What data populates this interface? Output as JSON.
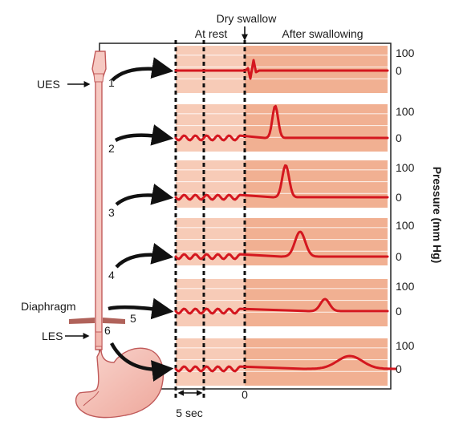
{
  "header": {
    "dry_swallow": "Dry swallow",
    "at_rest": "At rest",
    "after_swallowing": "After swallowing"
  },
  "anatomy": {
    "ues": "UES",
    "diaphragm": "Diaphragm",
    "les": "LES"
  },
  "sites": [
    "1",
    "2",
    "3",
    "4",
    "5",
    "6"
  ],
  "axis": {
    "ylabel": "Pressure (mm Hg)",
    "tick_high": "100",
    "tick_low": "0",
    "swallow_time": "0",
    "scale_bar": "5 sec"
  },
  "colors": {
    "band_rest": "#f7cbb7",
    "band_after": "#f1b092",
    "trace": "#d4171f",
    "esophagus_fill": "#f6c9c2",
    "esophagus_stroke": "#c25a5a",
    "diaphragm": "#b0625a"
  }
}
